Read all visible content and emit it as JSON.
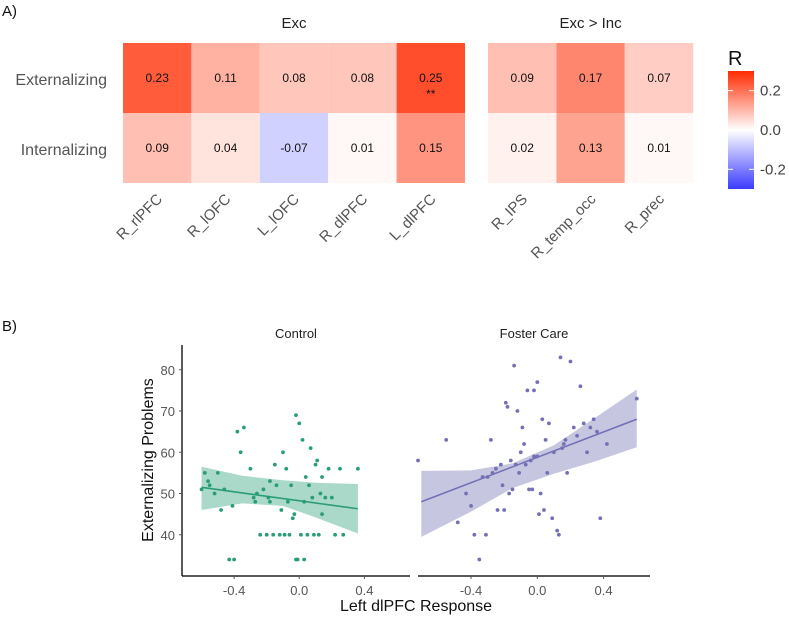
{
  "panel_a_label": "A)",
  "panel_b_label": "B)",
  "colors": {
    "heat_low": "#3b3bff",
    "heat_mid": "#ffffff",
    "heat_high": "#ff2a00",
    "control": "#2a9d78",
    "foster": "#7470b5"
  },
  "chart_data": [
    {
      "type": "heatmap",
      "title": "",
      "legend_title": "R",
      "legend_ticks": [
        "0.2",
        "0.0",
        "-0.2"
      ],
      "legend_tick_values": [
        0.2,
        0.0,
        -0.2
      ],
      "legend_range": [
        -0.3,
        0.3
      ],
      "legend_position": "right",
      "rows": [
        "Externalizing",
        "Internalizing"
      ],
      "groups": [
        {
          "title": "Exc",
          "columns": [
            "R_rlPFC",
            "R_lOFC",
            "L_lOFC",
            "R_dlPFC",
            "L_dlPFC"
          ],
          "values": [
            [
              0.23,
              0.11,
              0.08,
              0.08,
              0.25
            ],
            [
              0.09,
              0.04,
              -0.07,
              0.01,
              0.15
            ]
          ],
          "labels": [
            [
              "0.23",
              "0.11",
              "0.08",
              "0.08",
              "0.25"
            ],
            [
              "0.09",
              "0.04",
              "-0.07",
              "0.01",
              "0.15"
            ]
          ],
          "sig": [
            [
              "",
              "",
              "",
              "",
              "**"
            ],
            [
              "",
              "",
              "",
              "",
              ""
            ]
          ]
        },
        {
          "title": "Exc > Inc",
          "columns": [
            "R_IPS",
            "R_temp_occ",
            "R_prec"
          ],
          "values": [
            [
              0.09,
              0.17,
              0.07
            ],
            [
              0.02,
              0.13,
              0.01
            ]
          ],
          "labels": [
            [
              "0.09",
              "0.17",
              "0.07"
            ],
            [
              "0.02",
              "0.13",
              "0.01"
            ]
          ],
          "sig": [
            [
              "",
              "",
              ""
            ],
            [
              "",
              "",
              ""
            ]
          ]
        }
      ]
    },
    {
      "type": "scatter",
      "xlabel": "Left dlPFC Response",
      "ylabel": "Externalizing Problems",
      "xlim": [
        -0.72,
        0.68
      ],
      "ylim": [
        30,
        86
      ],
      "yticks": [
        40,
        50,
        60,
        70,
        80
      ],
      "ytick_labels": [
        "40",
        "50",
        "60",
        "70",
        "80"
      ],
      "xticks": [
        -0.4,
        0.0,
        0.4
      ],
      "xtick_labels": [
        "-0.4",
        "0.0",
        "0.4"
      ],
      "facets": [
        {
          "title": "Control",
          "color_key": "control",
          "fit": {
            "x": [
              -0.6,
              0.36
            ],
            "y": [
              51.5,
              46.3
            ]
          },
          "band": {
            "x": [
              -0.6,
              -0.35,
              -0.1,
              0.1,
              0.36
            ],
            "upper": [
              56.5,
              54.3,
              53.2,
              52.6,
              52.3
            ],
            "lower": [
              46.0,
              47.6,
              47.0,
              44.2,
              40.3
            ]
          },
          "points": [
            [
              -0.6,
              51
            ],
            [
              -0.58,
              55
            ],
            [
              -0.56,
              53
            ],
            [
              -0.55,
              52
            ],
            [
              -0.52,
              50
            ],
            [
              -0.5,
              55
            ],
            [
              -0.48,
              46
            ],
            [
              -0.46,
              51
            ],
            [
              -0.43,
              34
            ],
            [
              -0.41,
              47
            ],
            [
              -0.4,
              34
            ],
            [
              -0.38,
              65
            ],
            [
              -0.36,
              60
            ],
            [
              -0.34,
              66
            ],
            [
              -0.3,
              56
            ],
            [
              -0.28,
              49
            ],
            [
              -0.27,
              48
            ],
            [
              -0.26,
              50
            ],
            [
              -0.24,
              40
            ],
            [
              -0.22,
              51
            ],
            [
              -0.2,
              40
            ],
            [
              -0.19,
              49
            ],
            [
              -0.18,
              48
            ],
            [
              -0.16,
              40
            ],
            [
              -0.15,
              57
            ],
            [
              -0.14,
              52
            ],
            [
              -0.12,
              40
            ],
            [
              -0.11,
              46
            ],
            [
              -0.1,
              60
            ],
            [
              -0.09,
              40
            ],
            [
              -0.08,
              56
            ],
            [
              -0.07,
              48
            ],
            [
              -0.06,
              40
            ],
            [
              -0.05,
              52
            ],
            [
              -0.04,
              44
            ],
            [
              -0.03,
              45
            ],
            [
              -0.02,
              69
            ],
            [
              -0.01,
              34
            ],
            [
              0.0,
              67
            ],
            [
              0.01,
              40
            ],
            [
              0.02,
              63
            ],
            [
              0.03,
              48
            ],
            [
              0.04,
              54
            ],
            [
              0.05,
              40
            ],
            [
              0.06,
              52
            ],
            [
              0.07,
              61
            ],
            [
              0.08,
              49
            ],
            [
              0.09,
              40
            ],
            [
              0.1,
              57
            ],
            [
              0.11,
              58
            ],
            [
              0.12,
              40
            ],
            [
              0.13,
              50
            ],
            [
              0.14,
              45
            ],
            [
              0.16,
              49
            ],
            [
              0.18,
              56
            ],
            [
              0.2,
              49
            ],
            [
              0.22,
              40
            ],
            [
              0.25,
              56
            ],
            [
              0.27,
              40
            ],
            [
              0.36,
              56
            ],
            [
              -0.02,
              34
            ],
            [
              0.03,
              34
            ],
            [
              -0.18,
              53
            ],
            [
              0.14,
              54
            ]
          ]
        },
        {
          "title": "Foster Care",
          "color_key": "foster",
          "fit": {
            "x": [
              -0.7,
              0.6
            ],
            "y": [
              48.0,
              68.0
            ]
          },
          "band": {
            "x": [
              -0.7,
              -0.4,
              -0.15,
              0.1,
              0.35,
              0.6
            ],
            "upper": [
              55.5,
              55.6,
              57.3,
              61.7,
              68.4,
              75.2
            ],
            "lower": [
              39.5,
              45.6,
              51.3,
              54.8,
              57.8,
              61.2
            ]
          },
          "points": [
            [
              -0.72,
              58
            ],
            [
              -0.55,
              63
            ],
            [
              -0.48,
              43
            ],
            [
              -0.43,
              50
            ],
            [
              -0.4,
              47
            ],
            [
              -0.38,
              40
            ],
            [
              -0.35,
              34
            ],
            [
              -0.33,
              54
            ],
            [
              -0.31,
              40
            ],
            [
              -0.3,
              54
            ],
            [
              -0.28,
              63
            ],
            [
              -0.27,
              55
            ],
            [
              -0.25,
              56
            ],
            [
              -0.24,
              46
            ],
            [
              -0.22,
              57
            ],
            [
              -0.21,
              52
            ],
            [
              -0.2,
              46
            ],
            [
              -0.19,
              72
            ],
            [
              -0.18,
              71
            ],
            [
              -0.17,
              50
            ],
            [
              -0.16,
              58
            ],
            [
              -0.15,
              51
            ],
            [
              -0.14,
              81
            ],
            [
              -0.13,
              57
            ],
            [
              -0.12,
              70
            ],
            [
              -0.11,
              55
            ],
            [
              -0.1,
              60
            ],
            [
              -0.09,
              66
            ],
            [
              -0.08,
              62
            ],
            [
              -0.07,
              57
            ],
            [
              -0.06,
              75
            ],
            [
              -0.05,
              51
            ],
            [
              -0.04,
              58
            ],
            [
              -0.03,
              51
            ],
            [
              -0.02,
              59
            ],
            [
              0.0,
              59
            ],
            [
              0.01,
              45
            ],
            [
              0.02,
              50
            ],
            [
              0.03,
              68
            ],
            [
              0.04,
              46
            ],
            [
              0.05,
              63
            ],
            [
              0.06,
              55
            ],
            [
              0.07,
              67
            ],
            [
              0.09,
              44
            ],
            [
              0.1,
              60
            ],
            [
              0.12,
              41
            ],
            [
              0.13,
              40
            ],
            [
              0.14,
              83
            ],
            [
              0.15,
              61
            ],
            [
              0.17,
              63
            ],
            [
              0.18,
              55
            ],
            [
              0.2,
              82
            ],
            [
              0.22,
              66
            ],
            [
              0.24,
              64
            ],
            [
              0.26,
              76
            ],
            [
              0.28,
              67
            ],
            [
              0.3,
              60
            ],
            [
              0.32,
              66
            ],
            [
              0.34,
              68
            ],
            [
              0.36,
              65
            ],
            [
              0.38,
              44
            ],
            [
              0.42,
              62
            ],
            [
              0.6,
              73
            ],
            [
              0.0,
              77
            ],
            [
              -0.02,
              75
            ],
            [
              0.16,
              62
            ]
          ]
        }
      ]
    }
  ]
}
